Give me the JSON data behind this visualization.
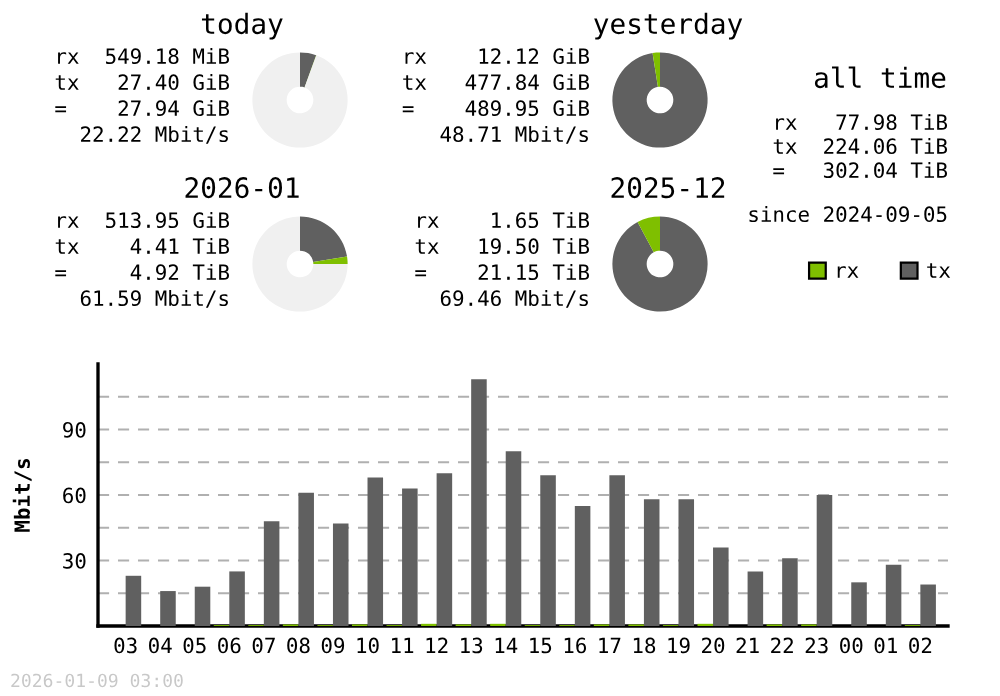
{
  "chart_data": [
    {
      "type": "donut",
      "title": "today",
      "categories": [
        null,
        null,
        null
      ],
      "values": [
        5.5,
        0.1,
        94.4
      ],
      "colors": [
        "#606060",
        "#7fbf00",
        "#f0f0f0"
      ],
      "annotations": [
        "rx  549.18 MiB",
        "tx   27.40 GiB",
        "=    27.94 GiB",
        "22.22 Mbit/s"
      ]
    },
    {
      "type": "donut",
      "title": "yesterday",
      "categories": [
        null,
        null
      ],
      "values": [
        97.5,
        2.5
      ],
      "colors": [
        "#606060",
        "#7fbf00"
      ],
      "annotations": [
        "rx    12.12 GiB",
        "tx   477.84 GiB",
        "=    489.95 GiB",
        "48.71 Mbit/s"
      ]
    },
    {
      "type": "donut",
      "title": "2026-01",
      "categories": [
        null,
        null,
        null
      ],
      "values": [
        22.5,
        2.5,
        75
      ],
      "colors": [
        "#606060",
        "#7fbf00",
        "#f0f0f0"
      ],
      "annotations": [
        "rx  513.95 GiB",
        "tx    4.41 TiB",
        "=     4.92 TiB",
        "61.59 Mbit/s"
      ]
    },
    {
      "type": "donut",
      "title": "2025-12",
      "categories": [
        null,
        null
      ],
      "values": [
        92.2,
        7.8
      ],
      "colors": [
        "#606060",
        "#7fbf00"
      ],
      "annotations": [
        "rx    1.65 TiB",
        "tx   19.50 TiB",
        "=    21.15 TiB",
        "69.46 Mbit/s"
      ]
    },
    {
      "type": "other",
      "title": "all time",
      "annotations": [
        "rx   77.98 TiB",
        "tx  224.06 TiB",
        "=   302.04 TiB",
        "since 2024-09-05"
      ]
    },
    {
      "type": "bar",
      "ylabel": "Mbit/s",
      "legend": "top right",
      "grid": "y",
      "categories": [
        "03",
        "04",
        "05",
        "06",
        "07",
        "08",
        "09",
        "10",
        "11",
        "12",
        "13",
        "14",
        "15",
        "16",
        "17",
        "18",
        "19",
        "20",
        "21",
        "22",
        "23",
        "00",
        "01",
        "02"
      ],
      "series": [
        {
          "name": "rx",
          "color": "#7fbf00",
          "values": [
            0,
            0,
            0,
            0.4,
            0.4,
            0.7,
            0.4,
            0.7,
            0.4,
            1,
            0.7,
            1,
            0.4,
            0.4,
            0.7,
            0.7,
            0.4,
            1,
            0,
            0.7,
            0.7,
            0,
            0,
            0.4
          ]
        },
        {
          "name": "tx",
          "color": "#606060",
          "values": [
            23,
            16,
            18,
            25,
            48,
            61,
            47,
            68,
            63,
            70,
            113,
            80,
            69,
            55,
            69,
            58,
            58,
            36,
            25,
            31,
            60,
            20,
            28,
            19
          ]
        }
      ],
      "ylim": [
        0,
        120
      ],
      "yticks": [
        {
          "value": 15,
          "label": null
        },
        30,
        {
          "value": 45,
          "label": null
        },
        60,
        {
          "value": 75,
          "label": null
        },
        90,
        {
          "value": 105,
          "label": null
        }
      ],
      "annotations": [
        "2026-01-09 03:00"
      ]
    }
  ]
}
